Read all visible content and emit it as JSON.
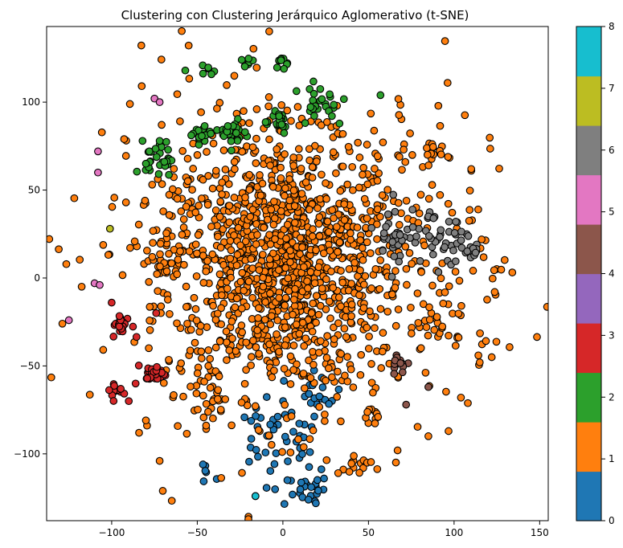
{
  "chart_data": {
    "type": "scatter",
    "title": "Clustering con Clustering Jerárquico Aglomerativo (t-SNE)",
    "xlabel": "",
    "ylabel": "",
    "xlim": [
      -138,
      155
    ],
    "ylim": [
      -138,
      143
    ],
    "x_ticks": [
      -100,
      -50,
      0,
      50,
      100,
      150
    ],
    "y_ticks": [
      -100,
      -50,
      0,
      50,
      100
    ],
    "marker_edge_color": "#000000",
    "colorbar": {
      "range": [
        0,
        8
      ],
      "ticks": [
        0,
        1,
        2,
        3,
        4,
        5,
        6,
        7,
        8
      ],
      "colors": [
        "#1f77b4",
        "#ff7f0e",
        "#2ca02c",
        "#d62728",
        "#9467bd",
        "#8c564b",
        "#e377c2",
        "#7f7f7f",
        "#bcbd22",
        "#17becf"
      ]
    },
    "clusters": [
      {
        "label": 0,
        "color": "#1f77b4",
        "groups": [
          {
            "cx": 5,
            "cy": -95,
            "sx": 12,
            "sy": 18,
            "n": 45
          },
          {
            "cx": 15,
            "cy": -120,
            "sx": 6,
            "sy": 4,
            "n": 20
          },
          {
            "cx": 22,
            "cy": -65,
            "sx": 6,
            "sy": 5,
            "n": 12
          },
          {
            "cx": -45,
            "cy": -112,
            "sx": 3,
            "sy": 4,
            "n": 6
          },
          {
            "cx": -15,
            "cy": -84,
            "sx": 8,
            "sy": 6,
            "n": 10
          }
        ],
        "points": [
          [
            -16,
            -124
          ]
        ]
      },
      {
        "label": 1,
        "color": "#ff7f0e",
        "groups": [
          {
            "cx": 0,
            "cy": 5,
            "sx": 35,
            "sy": 35,
            "n": 900
          },
          {
            "cx": 5,
            "cy": 20,
            "sx": 55,
            "sy": 50,
            "n": 500
          },
          {
            "cx": 85,
            "cy": 70,
            "sx": 4,
            "sy": 4,
            "n": 15
          },
          {
            "cx": 88,
            "cy": -25,
            "sx": 5,
            "sy": 8,
            "n": 20
          },
          {
            "cx": 50,
            "cy": -80,
            "sx": 3,
            "sy": 3,
            "n": 10
          },
          {
            "cx": 42,
            "cy": -107,
            "sx": 5,
            "sy": 4,
            "n": 15
          },
          {
            "cx": -65,
            "cy": 20,
            "sx": 6,
            "sy": 15,
            "n": 30
          },
          {
            "cx": -45,
            "cy": -70,
            "sx": 10,
            "sy": 10,
            "n": 25
          },
          {
            "cx": 125,
            "cy": 5,
            "sx": 10,
            "sy": 8,
            "n": 10
          },
          {
            "cx": 110,
            "cy": -35,
            "sx": 10,
            "sy": 10,
            "n": 10
          }
        ],
        "points": [
          [
            -72,
            -104
          ],
          [
            67,
            -98
          ],
          [
            85,
            -90
          ],
          [
            104,
            -68
          ],
          [
            110,
            62
          ],
          [
            -84,
            -88
          ],
          [
            -80,
            -81
          ],
          [
            115,
            -48
          ],
          [
            122,
            -45
          ]
        ]
      },
      {
        "label": 2,
        "color": "#2ca02c",
        "groups": [
          {
            "cx": -72,
            "cy": 68,
            "sx": 4,
            "sy": 5,
            "n": 30
          },
          {
            "cx": -48,
            "cy": 83,
            "sx": 3,
            "sy": 3,
            "n": 15
          },
          {
            "cx": -28,
            "cy": 82,
            "sx": 4,
            "sy": 4,
            "n": 25
          },
          {
            "cx": -5,
            "cy": 90,
            "sx": 5,
            "sy": 4,
            "n": 20
          },
          {
            "cx": 22,
            "cy": 100,
            "sx": 8,
            "sy": 7,
            "n": 25
          },
          {
            "cx": -20,
            "cy": 123,
            "sx": 2,
            "sy": 2,
            "n": 8
          },
          {
            "cx": 0,
            "cy": 124,
            "sx": 2,
            "sy": 2,
            "n": 10
          },
          {
            "cx": -43,
            "cy": 117,
            "sx": 2,
            "sy": 2,
            "n": 6
          }
        ],
        "points": [
          [
            -57,
            118
          ],
          [
            57,
            104
          ],
          [
            -82,
            78
          ],
          [
            -78,
            72
          ],
          [
            -72,
            78
          ],
          [
            -80,
            65
          ]
        ]
      },
      {
        "label": 3,
        "color": "#d62728",
        "groups": [
          {
            "cx": -94,
            "cy": -27,
            "sx": 3,
            "sy": 3,
            "n": 25
          },
          {
            "cx": -74,
            "cy": -54,
            "sx": 3,
            "sy": 2,
            "n": 30
          },
          {
            "cx": -97,
            "cy": -65,
            "sx": 3,
            "sy": 3,
            "n": 12
          }
        ],
        "points": [
          [
            -74,
            -20
          ],
          [
            -100,
            -14
          ],
          [
            -90,
            -70
          ],
          [
            -86,
            -60
          ]
        ]
      },
      {
        "label": 5,
        "color": "#8c564b",
        "groups": [
          {
            "cx": 68,
            "cy": -48,
            "sx": 3,
            "sy": 3,
            "n": 15
          }
        ],
        "points": [
          [
            72,
            -72
          ],
          [
            85,
            -62
          ]
        ]
      },
      {
        "label": 6,
        "color": "#e377c2",
        "groups": [],
        "points": [
          [
            -108,
            72
          ],
          [
            -108,
            60
          ],
          [
            -75,
            102
          ],
          [
            -72,
            100
          ],
          [
            -110,
            -3
          ],
          [
            -107,
            -4
          ],
          [
            -125,
            -24
          ]
        ]
      },
      {
        "label": 7,
        "color": "#7f7f7f",
        "groups": [
          {
            "cx": 68,
            "cy": 25,
            "sx": 7,
            "sy": 9,
            "n": 40
          },
          {
            "cx": 97,
            "cy": 20,
            "sx": 8,
            "sy": 8,
            "n": 35
          },
          {
            "cx": 112,
            "cy": 16,
            "sx": 2,
            "sy": 2,
            "n": 6
          }
        ],
        "points": [
          [
            85,
            35
          ],
          [
            88,
            34
          ],
          [
            101,
            32
          ]
        ]
      },
      {
        "label": 8,
        "color": "#bcbd22",
        "groups": [],
        "points": [
          [
            -101,
            28
          ]
        ]
      },
      {
        "label": 9,
        "color": "#17becf",
        "groups": [],
        "points": [
          [
            -16,
            -124
          ]
        ]
      }
    ]
  }
}
